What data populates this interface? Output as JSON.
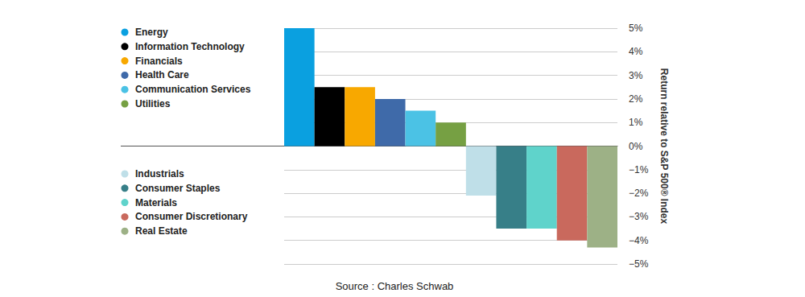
{
  "chart_data": {
    "type": "bar",
    "categories": [
      "Energy",
      "Information Technology",
      "Financials",
      "Health Care",
      "Communication Services",
      "Utilities",
      "Industrials",
      "Consumer Staples",
      "Materials",
      "Consumer Discretionary",
      "Real Estate"
    ],
    "values": [
      5,
      2.5,
      2.5,
      2,
      1.5,
      1,
      -2.1,
      -3.5,
      -3.5,
      -4,
      -4.3
    ],
    "colors": [
      "#0aa0e0",
      "#000000",
      "#f8a800",
      "#3f6aa9",
      "#4bc2e5",
      "#76a043",
      "#bfdfe8",
      "#377f88",
      "#5fd3cb",
      "#c9695d",
      "#9db186"
    ],
    "y_label": "Return relative to S&P 500® Index",
    "source": "Source : Charles Schwab",
    "ylim": [
      -5,
      5
    ],
    "yticks": [
      {
        "value": -5,
        "label": "−5%"
      },
      {
        "value": -4,
        "label": "−4%"
      },
      {
        "value": -3,
        "label": "−3%"
      },
      {
        "value": -2,
        "label": "−2%"
      },
      {
        "value": -1,
        "label": "−1%"
      },
      {
        "value": 0,
        "label": "0%"
      },
      {
        "value": 1,
        "label": "1%"
      },
      {
        "value": 2,
        "label": "2%"
      },
      {
        "value": 3,
        "label": "3%"
      },
      {
        "value": 4,
        "label": "4%"
      },
      {
        "value": 5,
        "label": "5%"
      }
    ],
    "grid": true,
    "legend": "left",
    "tick_labels": "y"
  }
}
